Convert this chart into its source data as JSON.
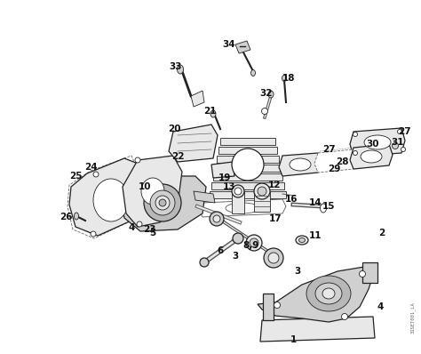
{
  "bg": "#ffffff",
  "lc": "#222222",
  "fc_light": "#e8e8e8",
  "fc_mid": "#d0d0d0",
  "fc_dark": "#b8b8b8",
  "lw_main": 0.9,
  "lw_thin": 0.6,
  "fs_label": 7.5,
  "watermark": "31SET001_LA",
  "fig_w": 4.74,
  "fig_h": 3.98,
  "dpi": 100
}
